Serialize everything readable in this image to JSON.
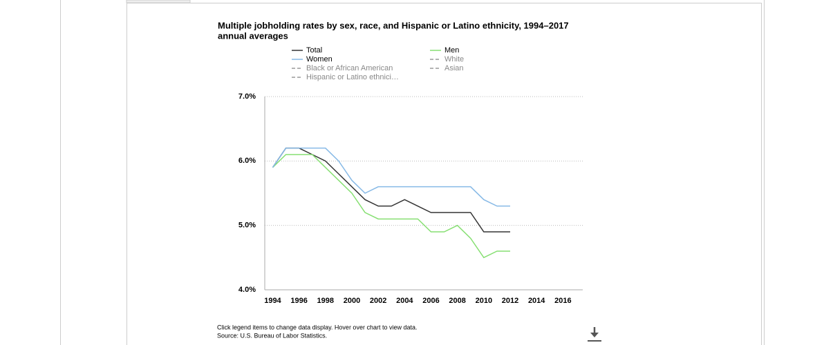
{
  "chart_data": {
    "type": "line",
    "title_lines": [
      "Multiple jobholding rates by sex, race, and Hispanic or Latino ethnicity, 1994–2017",
      "annual averages"
    ],
    "x": [
      1994,
      1995,
      1996,
      1997,
      1998,
      1999,
      2000,
      2001,
      2002,
      2003,
      2004,
      2005,
      2006,
      2007,
      2008,
      2009,
      2010,
      2011,
      2012
    ],
    "series": [
      {
        "name": "Total",
        "color": "#333333",
        "values": [
          5.9,
          6.2,
          6.2,
          6.1,
          6.0,
          5.8,
          5.6,
          5.4,
          5.3,
          5.3,
          5.4,
          5.3,
          5.2,
          5.2,
          5.2,
          5.2,
          4.9,
          4.9,
          4.9
        ]
      },
      {
        "name": "Men",
        "color": "#86df72",
        "values": [
          5.9,
          6.1,
          6.1,
          6.1,
          5.9,
          5.7,
          5.5,
          5.2,
          5.1,
          5.1,
          5.1,
          5.1,
          4.9,
          4.9,
          5.0,
          4.8,
          4.5,
          4.6,
          4.6
        ]
      },
      {
        "name": "Women",
        "color": "#86b9e6",
        "values": [
          5.9,
          6.2,
          6.2,
          6.2,
          6.2,
          6.0,
          5.7,
          5.5,
          5.6,
          5.6,
          5.6,
          5.6,
          5.6,
          5.6,
          5.6,
          5.6,
          5.4,
          5.3,
          5.3
        ]
      }
    ],
    "inactive_series": [
      {
        "name": "White",
        "color": "#999999"
      },
      {
        "name": "Black or African American",
        "color": "#999999"
      },
      {
        "name": "Asian",
        "color": "#999999"
      },
      {
        "name": "Hispanic or Latino ethnici…",
        "color": "#999999"
      }
    ],
    "xlim": [
      1993.4,
      2017.5
    ],
    "xticks": [
      1994,
      1996,
      1998,
      2000,
      2002,
      2004,
      2006,
      2008,
      2010,
      2012,
      2014,
      2016
    ],
    "ylim": [
      4,
      7
    ],
    "yticks": [
      {
        "value": 4,
        "label": "4.0%"
      },
      {
        "value": 5,
        "label": "5.0%"
      },
      {
        "value": 6,
        "label": "6.0%"
      },
      {
        "value": 7,
        "label": "7.0%"
      }
    ],
    "grid": true,
    "notes": [
      "Click legend items to change data display. Hover over chart to view data.",
      "Source: U.S. Bureau of Labor Statistics."
    ]
  }
}
